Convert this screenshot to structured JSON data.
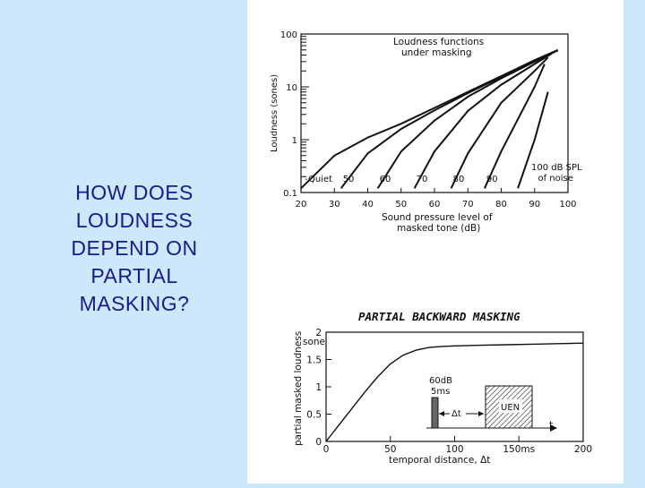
{
  "slide": {
    "question_lines": [
      "HOW DOES",
      "LOUDNESS",
      "DEPEND ON",
      "PARTIAL",
      "MASKING?"
    ]
  },
  "colors": {
    "background": "#cce8fb",
    "question_text": "#1a1a8c",
    "paper": "#ffffff",
    "ink": "#111111"
  },
  "chart_data": [
    {
      "type": "line",
      "title": "Loudness functions under masking",
      "ylabel": "Loudness (sones)",
      "xlabel": "Sound pressure level of masked tone (dB)",
      "y_scale": "log",
      "ylim": [
        0.1,
        100
      ],
      "xlim": [
        20,
        100
      ],
      "x_ticks": [
        "20",
        "30",
        "40",
        "50",
        "60",
        "70",
        "80",
        "90",
        "100"
      ],
      "y_ticks": [
        "0.1",
        "1",
        "10",
        "100"
      ],
      "curve_labels": [
        "Quiet",
        "50",
        "60",
        "70",
        "80",
        "90",
        "100 dB SPL of noise"
      ],
      "series": [
        {
          "name": "Quiet",
          "x": [
            20,
            30,
            40,
            50,
            60,
            70,
            80,
            90,
            97
          ],
          "y": [
            0.12,
            0.5,
            1.1,
            2.0,
            4.0,
            8.0,
            16,
            32,
            50
          ]
        },
        {
          "name": "50",
          "x": [
            32,
            40,
            50,
            60,
            70,
            80,
            90,
            97
          ],
          "y": [
            0.12,
            0.55,
            1.6,
            3.6,
            7.6,
            15.5,
            31,
            49
          ]
        },
        {
          "name": "60",
          "x": [
            43,
            50,
            60,
            70,
            80,
            90,
            96
          ],
          "y": [
            0.12,
            0.6,
            2.3,
            6.5,
            14.5,
            30,
            46
          ]
        },
        {
          "name": "70",
          "x": [
            54,
            60,
            70,
            80,
            90,
            95
          ],
          "y": [
            0.12,
            0.6,
            3.5,
            11,
            27,
            42
          ]
        },
        {
          "name": "80",
          "x": [
            65,
            70,
            80,
            90,
            94
          ],
          "y": [
            0.12,
            0.55,
            5,
            20,
            36
          ]
        },
        {
          "name": "90",
          "x": [
            75,
            80,
            90,
            93
          ],
          "y": [
            0.12,
            0.6,
            10,
            27
          ]
        },
        {
          "name": "100 dB SPL of noise",
          "x": [
            85,
            90,
            94
          ],
          "y": [
            0.12,
            1.0,
            8
          ]
        }
      ]
    },
    {
      "type": "line",
      "title": "PARTIAL BACKWARD MASKING",
      "ylabel": "partial masked loudness",
      "xlabel": "temporal distance, Δt",
      "xlim": [
        0,
        200
      ],
      "ylim": [
        0,
        2
      ],
      "x_ticks": [
        "0",
        "50",
        "100",
        "150ms",
        "200"
      ],
      "y_ticks": [
        "0",
        "0.5",
        "1",
        "1.5",
        "2"
      ],
      "y_unit": "sone",
      "series": [
        {
          "x": [
            0,
            10,
            20,
            30,
            40,
            50,
            60,
            70,
            80,
            90,
            100,
            120,
            140,
            160,
            180,
            200
          ],
          "y": [
            0,
            0.3,
            0.6,
            0.9,
            1.18,
            1.42,
            1.58,
            1.67,
            1.72,
            1.74,
            1.75,
            1.76,
            1.77,
            1.78,
            1.79,
            1.8
          ]
        }
      ],
      "inset": {
        "tone_label": "60dB",
        "duration_label": "5ms",
        "delta_label": "Δt",
        "noise_label": "UEN",
        "time_axis_label": "t"
      }
    }
  ]
}
